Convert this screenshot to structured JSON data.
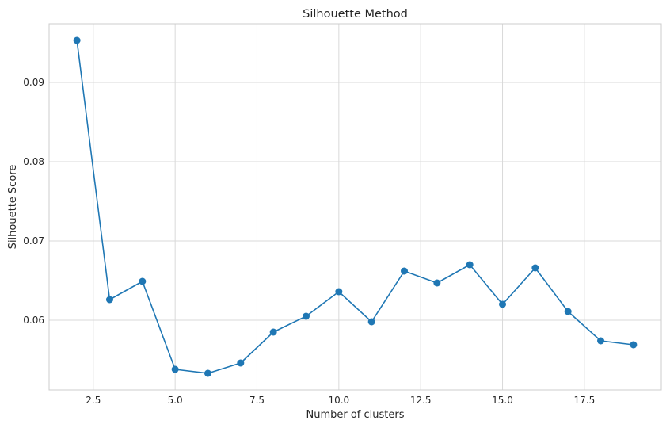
{
  "chart_data": {
    "type": "line",
    "title": "Silhouette Method",
    "xlabel": "Number of clusters",
    "ylabel": "Silhouette Score",
    "x": [
      2,
      3,
      4,
      5,
      6,
      7,
      8,
      9,
      10,
      11,
      12,
      13,
      14,
      15,
      16,
      17,
      18,
      19
    ],
    "series": [
      {
        "values": [
          0.0953,
          0.0626,
          0.0649,
          0.0538,
          0.0533,
          0.0546,
          0.0585,
          0.0605,
          0.0636,
          0.0598,
          0.0662,
          0.0647,
          0.067,
          0.062,
          0.0666,
          0.0611,
          0.0574,
          0.0569
        ],
        "color": "#1f77b4",
        "marker": "circle"
      }
    ],
    "xlim": [
      1.15,
      19.85
    ],
    "ylim": [
      0.0512,
      0.0974
    ],
    "xticks": [
      2.5,
      5.0,
      7.5,
      10.0,
      12.5,
      15.0,
      17.5
    ],
    "xtick_labels": [
      "2.5",
      "5.0",
      "7.5",
      "10.0",
      "12.5",
      "15.0",
      "17.5"
    ],
    "yticks": [
      0.06,
      0.07,
      0.08,
      0.09
    ],
    "ytick_labels": [
      "0.06",
      "0.07",
      "0.08",
      "0.09"
    ],
    "grid": true
  }
}
